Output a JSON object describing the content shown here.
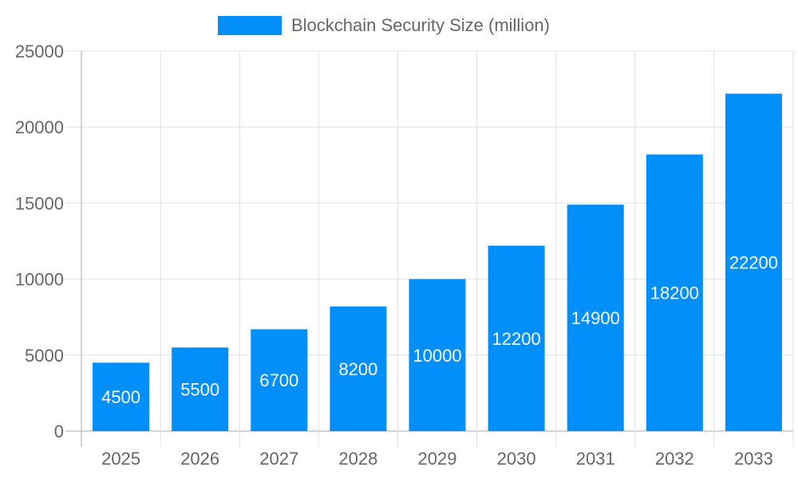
{
  "chart_data": {
    "type": "bar",
    "categories": [
      "2025",
      "2026",
      "2027",
      "2028",
      "2029",
      "2030",
      "2031",
      "2032",
      "2033"
    ],
    "series": [
      {
        "name": "Blockchain Security Size (million)",
        "values": [
          4500,
          5500,
          6700,
          8200,
          10000,
          12200,
          14900,
          18200,
          22200
        ],
        "color": "#038ffa"
      }
    ],
    "ylim": [
      0,
      25000
    ],
    "yticks": [
      0,
      5000,
      10000,
      15000,
      20000,
      25000
    ],
    "grid": true,
    "legend": "top-center",
    "data_labels": "inside-center"
  }
}
